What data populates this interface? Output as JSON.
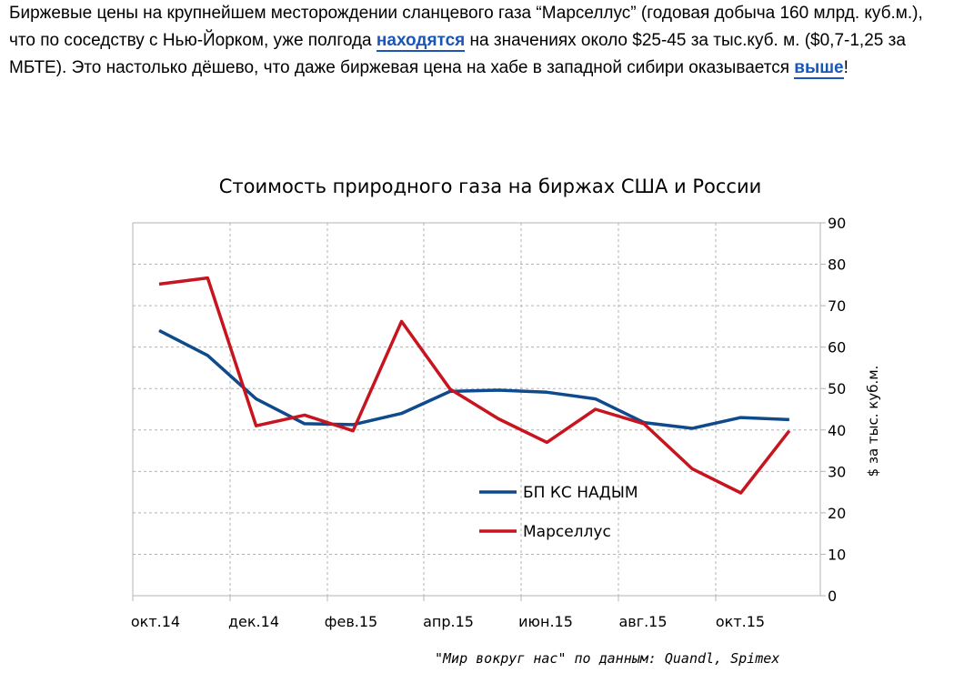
{
  "article": {
    "text_before_link1": "Биржевые цены на крупнейшем месторождении сланцевого газа “Марселлус” (годовая добыча 160 млрд. куб.м.), что по соседству с Нью-Йорком, уже полгода ",
    "link1": "находятся",
    "text_between": " на значениях около $25-45 за тыс.куб. м. ($0,7-1,25 за МБТЕ). Это настолько дёшево, что даже биржевая цена на хабе в западной сибири оказывается ",
    "link2": "выше",
    "text_after": "!"
  },
  "chart_data": {
    "type": "line",
    "title": "Стоимость природного газа на биржах США и России",
    "ylabel": "$ за тыс. куб.м.",
    "ylim": [
      0,
      90
    ],
    "yticks": [
      0,
      10,
      20,
      30,
      40,
      50,
      60,
      70,
      80,
      90
    ],
    "y_axis_side": "right",
    "grid": true,
    "legend_placement": "center-right",
    "x_tick_labels": [
      "окт.14",
      "дек.14",
      "фев.15",
      "апр.15",
      "июн.15",
      "авг.15",
      "окт.15"
    ],
    "x": [
      "2014-10",
      "2014-11",
      "2014-12",
      "2015-01",
      "2015-02",
      "2015-03",
      "2015-04",
      "2015-05",
      "2015-06",
      "2015-07",
      "2015-08",
      "2015-09",
      "2015-10",
      "2015-11"
    ],
    "series": [
      {
        "name": "БП КС НАДЫМ",
        "color": "#0e4a8c",
        "values": [
          64,
          58,
          47.5,
          41.5,
          41.3,
          44,
          49.3,
          49.6,
          49.1,
          47.5,
          41.8,
          40.4,
          43,
          42.5
        ]
      },
      {
        "name": "Марселлус",
        "color": "#c8141e",
        "values": [
          75.2,
          76.7,
          41,
          43.6,
          39.8,
          66.2,
          49.9,
          42.7,
          37,
          45,
          41.5,
          30.6,
          24.8,
          39.8
        ]
      }
    ],
    "source": "\"Мир вокруг нас\" по данным: Quandl, Spimex"
  }
}
